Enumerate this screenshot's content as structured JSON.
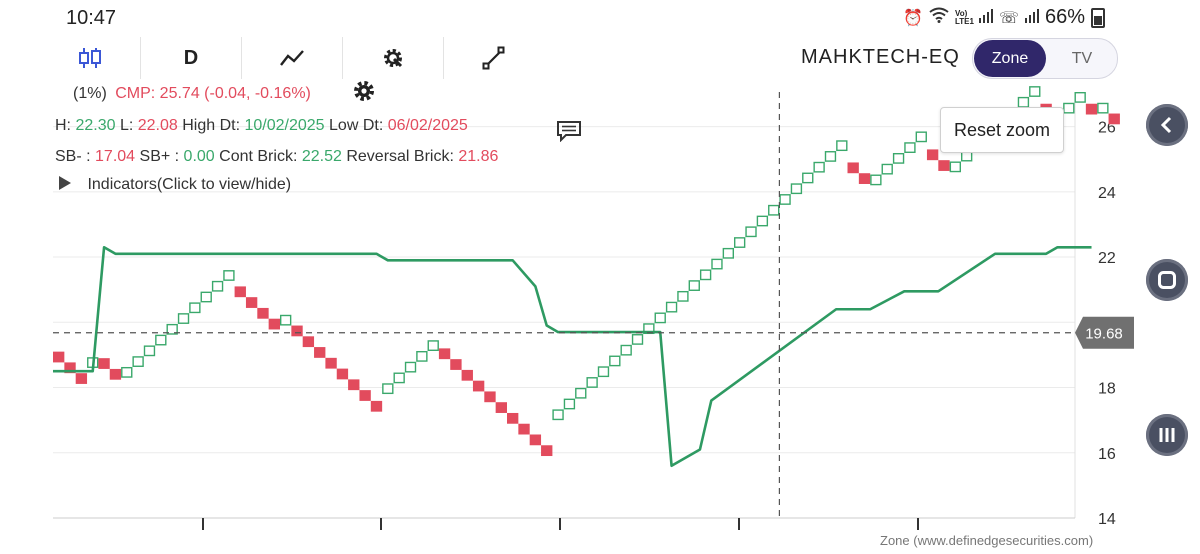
{
  "statusbar": {
    "time": "10:47",
    "battery": "66%",
    "icons": [
      "alarm-icon",
      "wifi-icon",
      "volte-icon",
      "signal-icon",
      "call-sim2-icon",
      "signal-icon",
      "battery-icon"
    ],
    "volte_label": "Vo) LTE1"
  },
  "toolbar": {
    "items": [
      {
        "name": "candlestick-icon"
      },
      {
        "name": "interval",
        "label": "D"
      },
      {
        "name": "line-chart-icon"
      },
      {
        "name": "settings-gear-icon"
      },
      {
        "name": "draw-tool-icon"
      }
    ]
  },
  "header": {
    "symbol": "MAHKTECH-EQ",
    "toggle": {
      "active": "Zone",
      "inactive": "TV"
    }
  },
  "info": {
    "line1": {
      "pct": "(1%)",
      "cmp": "CMP: 25.74 (-0.04, -0.16%)"
    },
    "line2": {
      "h_label": "H:",
      "h_value": "22.30",
      "l_label": "L:",
      "l_value": "22.08",
      "hd_label": "High Dt:",
      "hd_value": "10/02/2025",
      "ld_label": "Low Dt:",
      "ld_value": "06/02/2025"
    },
    "line3": {
      "sbm_label": "SB- :",
      "sbm_value": "17.04",
      "sbp_label": "SB+ :",
      "sbp_value": "0.00",
      "cb_label": "Cont Brick:",
      "cb_value": "22.52",
      "rb_label": "Reversal Brick:",
      "rb_value": "21.86"
    },
    "indicators": "Indicators(Click to view/hide)"
  },
  "reset_zoom": "Reset zoom",
  "crosshair_value": "19.68",
  "footer": "Zone (www.definedgesecurities.com)",
  "colors": {
    "up_brick": "#3aa86b",
    "down_brick": "#e24b5d",
    "line": "#2e9a62",
    "accent": "#30276a"
  },
  "chart_data": {
    "type": "renko",
    "ylim": [
      14,
      27
    ],
    "y_ticks": [
      14,
      16,
      18,
      20,
      22,
      24,
      26
    ],
    "brick_size": 0.33,
    "bricks": [
      {
        "dir": "down",
        "start": 19.1,
        "count": 3
      },
      {
        "dir": "up",
        "start": 18.6,
        "count": 1
      },
      {
        "dir": "down",
        "start": 18.9,
        "count": 2
      },
      {
        "dir": "up",
        "start": 18.3,
        "count": 10
      },
      {
        "dir": "down",
        "start": 21.1,
        "count": 4
      },
      {
        "dir": "up",
        "start": 19.9,
        "count": 1
      },
      {
        "dir": "down",
        "start": 19.9,
        "count": 8
      },
      {
        "dir": "up",
        "start": 17.8,
        "count": 5
      },
      {
        "dir": "down",
        "start": 19.2,
        "count": 10
      },
      {
        "dir": "up",
        "start": 17.0,
        "count": 26
      },
      {
        "dir": "down",
        "start": 24.9,
        "count": 2
      },
      {
        "dir": "up",
        "start": 24.2,
        "count": 5
      },
      {
        "dir": "down",
        "start": 25.3,
        "count": 2
      },
      {
        "dir": "up",
        "start": 24.6,
        "count": 8
      },
      {
        "dir": "down",
        "start": 26.7,
        "count": 2
      },
      {
        "dir": "up",
        "start": 26.4,
        "count": 2
      },
      {
        "dir": "down",
        "start": 26.7,
        "count": 1
      },
      {
        "dir": "up",
        "start": 26.4,
        "count": 1
      },
      {
        "dir": "down",
        "start": 26.4,
        "count": 1
      }
    ],
    "line_series": [
      {
        "x": 0,
        "y": 18.5
      },
      {
        "x": 3.5,
        "y": 18.5
      },
      {
        "x": 4.5,
        "y": 22.3
      },
      {
        "x": 5.5,
        "y": 22.1
      },
      {
        "x": 28.5,
        "y": 22.1
      },
      {
        "x": 29.5,
        "y": 21.9
      },
      {
        "x": 40.5,
        "y": 21.9
      },
      {
        "x": 42.5,
        "y": 21.1
      },
      {
        "x": 43.5,
        "y": 19.9
      },
      {
        "x": 44.5,
        "y": 19.7
      },
      {
        "x": 53.5,
        "y": 19.7
      },
      {
        "x": 54.5,
        "y": 15.6
      },
      {
        "x": 57,
        "y": 16.1
      },
      {
        "x": 58,
        "y": 17.6
      },
      {
        "x": 69,
        "y": 20.4
      },
      {
        "x": 72,
        "y": 20.4
      },
      {
        "x": 75,
        "y": 20.95
      },
      {
        "x": 78,
        "y": 20.95
      },
      {
        "x": 83,
        "y": 22.1
      },
      {
        "x": 87.5,
        "y": 22.1
      },
      {
        "x": 88.5,
        "y": 22.3
      },
      {
        "x": 91.5,
        "y": 22.3
      }
    ],
    "crosshair": {
      "y": 19.68,
      "x": 64
    }
  }
}
